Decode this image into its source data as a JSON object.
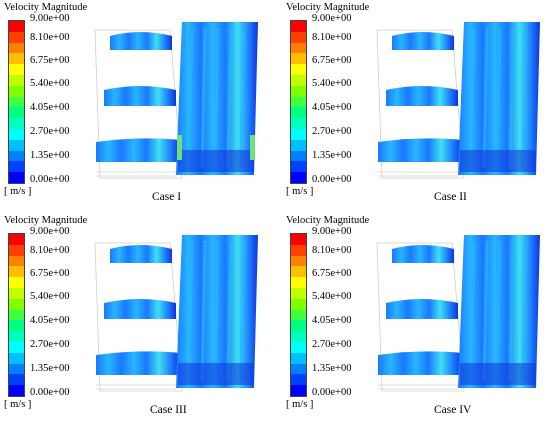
{
  "legend": {
    "title": "Velocity Magnitude",
    "units": "[ m/s ]",
    "ticks": [
      "9.00e+00",
      "8.10e+00",
      "6.75e+00",
      "5.40e+00",
      "4.05e+00",
      "2.70e+00",
      "1.35e+00",
      "0.00e+00"
    ],
    "colors": [
      "#ff0000",
      "#ff4000",
      "#ff8000",
      "#ffbf00",
      "#ffff00",
      "#bfff00",
      "#80ff00",
      "#40ff40",
      "#00ff80",
      "#00ffbf",
      "#00ffff",
      "#00bfff",
      "#0080ff",
      "#0040ff",
      "#0000ff"
    ]
  },
  "panels": [
    {
      "caption": "Case I"
    },
    {
      "caption": "Case II"
    },
    {
      "caption": "Case III"
    },
    {
      "caption": "Case IV"
    }
  ],
  "palette": {
    "deep": "#1033d8",
    "mid": "#1b78ff",
    "light": "#27b6ff",
    "cyan": "#3ee0f0",
    "green": "#6ee27a"
  }
}
